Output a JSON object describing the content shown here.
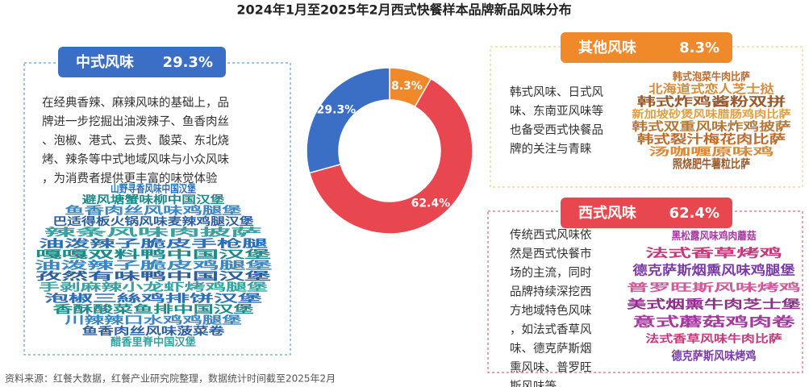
{
  "chart_data": {
    "type": "donut",
    "title": "2024年1月至2025年2月西式快餐样本品牌新品风味分布",
    "categories": [
      "其他风味",
      "西式风味",
      "中式风味"
    ],
    "values": [
      8.3,
      62.4,
      29.3
    ],
    "value_labels": [
      "8.3%",
      "62.4%",
      "29.3%"
    ],
    "colors": [
      "#f0892a",
      "#e8474f",
      "#3b6fc6"
    ]
  },
  "panels": [
    {
      "description": "在经典香辣、麻辣风味的基础上，品牌进一步挖掘出油泼辣子、鱼香肉丝、泡椒、港式、云贵、酸菜、东北烧烤、辣条等中式地域风味与小众风味，为消费者提供更丰富的味觉体验",
      "cloud": [
        "山野寻香风味中国汉堡",
        "避风塘蟹味柳中国汉堡",
        "鱼香肉丝风味鸡腿堡",
        "巴适得板火锅风味麦辣鸡腿汉堡",
        "辣条风味肉披萨",
        "油泼辣子脆皮手枪腿",
        "嘎嘎双料鸭中国汉堡",
        "油泼辣子脆皮鸡腿堡",
        "孜然有味鸭中国汉堡",
        "手剥麻辣小龙虾烤鸡腿堡",
        "泡椒三絲鸡排饼汉堡",
        "香酥酸菜鱼排中国汉堡",
        "川辣辣口水鸡鸡腿堡",
        "鱼香肉丝风味菠菜卷",
        "醋香里脊中国汉堡"
      ]
    },
    {
      "description": "韩式风味、日式风味、东南亚风味等也备受西式快餐品牌的关注与青睐",
      "cloud": [
        "韩式泡菜牛肉比萨",
        "北海道式恋人芝士挞",
        "韩式炸鸡酱粉双拼",
        "新加坡砂煲风味腊肠鸡肉比萨",
        "韩式双重风味炸鸡披萨",
        "韩式裂汁梅花肉比萨",
        "汤咖喱原味鸡",
        "照烧肥牛薯粒比萨"
      ]
    },
    {
      "description": "传统西式风味依然是西式快餐市场的主流，同时品牌持续深挖西方地域特色风味，如法式香草风味、德克萨斯烟熏风味、普罗旺斯风味等",
      "cloud": [
        "黑松露风味鸡肉蘑菇",
        "法式香草烤鸡",
        "德克萨斯烟熏风味鸡腿堡",
        "普罗旺斯风味烤鸡",
        "美式烟熏牛肉芝士堡",
        "意式蘑菇鸡肉卷",
        "法式香草风味牛肉比萨",
        "德克萨斯风味烤鸡"
      ]
    }
  ],
  "source": "资料来源：红餐大数据，红餐产业研究院整理，数据统计时间截至2025年2月"
}
